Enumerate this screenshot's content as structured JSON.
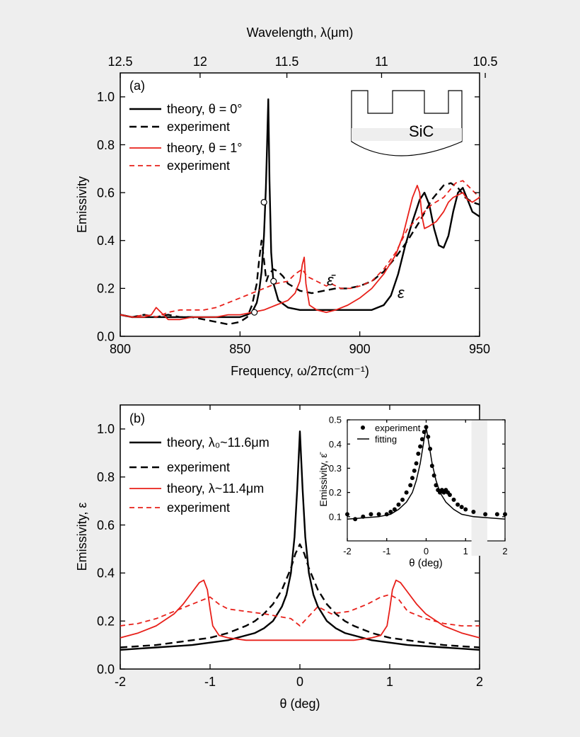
{
  "chart_data": [
    {
      "id": "a",
      "type": "line",
      "panel_label": "(a)",
      "xlabel": "Frequency, ω/2πc(cm⁻¹)",
      "x2label": "Wavelength, λ(μm)",
      "ylabel": "Emissivity",
      "xlim": [
        800,
        950
      ],
      "ylim": [
        0,
        1.1
      ],
      "x_ticks": [
        "800",
        "850",
        "900",
        "950"
      ],
      "x_tick_values": [
        800,
        850,
        900,
        950
      ],
      "y_ticks": [
        "0.0",
        "0.2",
        "0.4",
        "0.6",
        "0.8",
        "1.0"
      ],
      "y_tick_values": [
        0,
        0.2,
        0.4,
        0.6,
        0.8,
        1.0
      ],
      "top_ticks": [
        "12.5",
        "12",
        "11.5",
        "11",
        "10.5"
      ],
      "top_tick_values": [
        12.5,
        12,
        11.5,
        11,
        10.5
      ],
      "grid": false,
      "legend_position": "top-left",
      "legend": [
        {
          "label": "theory, θ = 0°",
          "series": 0
        },
        {
          "label": "experiment",
          "series": 1
        },
        {
          "label": "theory, θ = 1°",
          "series": 2
        },
        {
          "label": "experiment",
          "series": 3
        }
      ],
      "annotations": [
        {
          "text": "ε̄",
          "x": 888,
          "y": 0.24
        },
        {
          "text": "ε",
          "x": 918,
          "y": 0.18
        },
        {
          "text": "SiC",
          "x": 0,
          "y": 0
        }
      ],
      "markers": [
        {
          "x": 860,
          "y": 0.56
        },
        {
          "x": 856,
          "y": 0.1
        },
        {
          "x": 864,
          "y": 0.23
        }
      ],
      "series": [
        {
          "name": "theory, θ = 0°",
          "color": "#000000",
          "dash": "solid",
          "width": 2.4,
          "x": [
            800,
            805,
            810,
            815,
            820,
            825,
            830,
            835,
            840,
            845,
            850,
            853,
            855,
            857,
            858,
            859,
            860,
            860.8,
            861.3,
            861.8,
            862.3,
            863,
            864,
            866,
            870,
            875,
            880,
            890,
            900,
            905,
            910,
            913,
            916,
            919,
            922,
            925,
            927,
            929,
            931,
            933,
            935,
            937,
            939,
            941,
            943,
            945,
            947,
            950
          ],
          "y": [
            0.09,
            0.08,
            0.08,
            0.08,
            0.08,
            0.08,
            0.08,
            0.08,
            0.08,
            0.08,
            0.08,
            0.09,
            0.1,
            0.14,
            0.19,
            0.27,
            0.42,
            0.62,
            0.8,
            0.99,
            0.65,
            0.35,
            0.22,
            0.15,
            0.12,
            0.11,
            0.11,
            0.11,
            0.11,
            0.11,
            0.13,
            0.17,
            0.26,
            0.38,
            0.48,
            0.57,
            0.6,
            0.55,
            0.45,
            0.38,
            0.37,
            0.42,
            0.52,
            0.6,
            0.62,
            0.57,
            0.52,
            0.5
          ]
        },
        {
          "name": "experiment",
          "color": "#000000",
          "dash": "10,6",
          "width": 2.4,
          "x": [
            800,
            805,
            810,
            815,
            820,
            825,
            830,
            835,
            840,
            845,
            850,
            853,
            855,
            857,
            858,
            859,
            860,
            861,
            862,
            864,
            866,
            868,
            870,
            875,
            880,
            885,
            890,
            895,
            900,
            905,
            910,
            915,
            920,
            925,
            930,
            935,
            938,
            941,
            944,
            947,
            950
          ],
          "y": [
            0.09,
            0.08,
            0.09,
            0.08,
            0.09,
            0.08,
            0.08,
            0.07,
            0.06,
            0.05,
            0.06,
            0.08,
            0.13,
            0.22,
            0.32,
            0.4,
            0.32,
            0.23,
            0.26,
            0.28,
            0.27,
            0.25,
            0.22,
            0.19,
            0.18,
            0.19,
            0.2,
            0.2,
            0.21,
            0.23,
            0.27,
            0.33,
            0.4,
            0.48,
            0.57,
            0.63,
            0.64,
            0.62,
            0.58,
            0.56,
            0.55
          ]
        },
        {
          "name": "theory, θ = 1°",
          "color": "#e8201a",
          "dash": "solid",
          "width": 1.8,
          "x": [
            800,
            805,
            810,
            813,
            815,
            818,
            820,
            825,
            830,
            835,
            840,
            845,
            850,
            855,
            860,
            865,
            870,
            873,
            875,
            876,
            876.8,
            877.5,
            879,
            882,
            886,
            890,
            895,
            900,
            905,
            910,
            915,
            918,
            920,
            922,
            924,
            925,
            926,
            927,
            929,
            932,
            935,
            937,
            939,
            941,
            943,
            945,
            947,
            950
          ],
          "y": [
            0.09,
            0.08,
            0.08,
            0.09,
            0.12,
            0.09,
            0.07,
            0.07,
            0.08,
            0.08,
            0.08,
            0.09,
            0.09,
            0.1,
            0.11,
            0.13,
            0.15,
            0.18,
            0.23,
            0.3,
            0.33,
            0.22,
            0.13,
            0.11,
            0.1,
            0.11,
            0.13,
            0.16,
            0.2,
            0.26,
            0.34,
            0.42,
            0.5,
            0.58,
            0.63,
            0.6,
            0.5,
            0.45,
            0.46,
            0.48,
            0.52,
            0.56,
            0.58,
            0.59,
            0.6,
            0.57,
            0.56,
            0.58
          ]
        },
        {
          "name": "experiment",
          "color": "#e8201a",
          "dash": "7,5",
          "width": 1.8,
          "x": [
            800,
            805,
            810,
            815,
            820,
            825,
            830,
            835,
            840,
            845,
            850,
            855,
            860,
            865,
            870,
            873,
            876,
            878,
            880,
            884,
            886,
            888,
            892,
            896,
            900,
            905,
            910,
            915,
            920,
            925,
            930,
            935,
            940,
            943,
            946,
            950
          ],
          "y": [
            0.09,
            0.08,
            0.09,
            0.08,
            0.1,
            0.11,
            0.11,
            0.11,
            0.12,
            0.14,
            0.16,
            0.18,
            0.2,
            0.22,
            0.23,
            0.26,
            0.28,
            0.25,
            0.24,
            0.22,
            0.21,
            0.22,
            0.2,
            0.2,
            0.21,
            0.23,
            0.28,
            0.35,
            0.45,
            0.5,
            0.55,
            0.58,
            0.64,
            0.65,
            0.62,
            0.58
          ]
        }
      ]
    },
    {
      "id": "b",
      "type": "line",
      "panel_label": "(b)",
      "xlabel": "θ (deg)",
      "ylabel": "Emissivity, ε",
      "xlim": [
        -2,
        2
      ],
      "ylim": [
        0,
        1.1
      ],
      "x_ticks": [
        "-2",
        "-1",
        "0",
        "1",
        "2"
      ],
      "x_tick_values": [
        -2,
        -1,
        0,
        1,
        2
      ],
      "y_ticks": [
        "0.0",
        "0.2",
        "0.4",
        "0.6",
        "0.8",
        "1.0"
      ],
      "y_tick_values": [
        0,
        0.2,
        0.4,
        0.6,
        0.8,
        1.0
      ],
      "grid": false,
      "legend_position": "top-left",
      "legend": [
        {
          "label": "theory, λ₀~11.6μm",
          "series": 0
        },
        {
          "label": "experiment",
          "series": 1
        },
        {
          "label": "theory, λ~11.4μm",
          "series": 2
        },
        {
          "label": "experiment",
          "series": 3
        }
      ],
      "series": [
        {
          "name": "theory, λ₀~11.6μm",
          "color": "#000000",
          "dash": "solid",
          "width": 2.4,
          "x": [
            -2,
            -1.8,
            -1.6,
            -1.4,
            -1.2,
            -1,
            -0.8,
            -0.6,
            -0.5,
            -0.4,
            -0.3,
            -0.2,
            -0.15,
            -0.1,
            -0.06,
            -0.03,
            0,
            0.03,
            0.06,
            0.1,
            0.15,
            0.2,
            0.3,
            0.4,
            0.5,
            0.6,
            0.8,
            1,
            1.2,
            1.4,
            1.6,
            1.8,
            2
          ],
          "y": [
            0.08,
            0.085,
            0.09,
            0.095,
            0.1,
            0.11,
            0.12,
            0.14,
            0.15,
            0.17,
            0.2,
            0.26,
            0.31,
            0.4,
            0.55,
            0.75,
            0.99,
            0.75,
            0.55,
            0.4,
            0.31,
            0.26,
            0.2,
            0.17,
            0.15,
            0.14,
            0.12,
            0.11,
            0.1,
            0.095,
            0.09,
            0.085,
            0.08
          ]
        },
        {
          "name": "experiment",
          "color": "#000000",
          "dash": "10,6",
          "width": 2.4,
          "x": [
            -2,
            -1.8,
            -1.6,
            -1.4,
            -1.2,
            -1,
            -0.8,
            -0.6,
            -0.5,
            -0.4,
            -0.3,
            -0.2,
            -0.1,
            -0.05,
            0,
            0.05,
            0.1,
            0.2,
            0.3,
            0.4,
            0.5,
            0.6,
            0.8,
            1,
            1.2,
            1.4,
            1.6,
            1.8,
            2
          ],
          "y": [
            0.09,
            0.095,
            0.1,
            0.11,
            0.12,
            0.13,
            0.15,
            0.18,
            0.2,
            0.23,
            0.27,
            0.33,
            0.42,
            0.48,
            0.52,
            0.48,
            0.42,
            0.33,
            0.27,
            0.23,
            0.2,
            0.18,
            0.15,
            0.13,
            0.12,
            0.11,
            0.1,
            0.095,
            0.09
          ]
        },
        {
          "name": "theory, λ~11.4μm",
          "color": "#e8201a",
          "dash": "solid",
          "width": 1.8,
          "x": [
            -2,
            -1.8,
            -1.6,
            -1.4,
            -1.3,
            -1.2,
            -1.12,
            -1.07,
            -1.03,
            -1.0,
            -0.97,
            -0.9,
            -0.8,
            -0.6,
            -0.3,
            0,
            0.3,
            0.6,
            0.8,
            0.9,
            0.97,
            1.0,
            1.03,
            1.07,
            1.12,
            1.2,
            1.3,
            1.4,
            1.6,
            1.8,
            2
          ],
          "y": [
            0.13,
            0.15,
            0.18,
            0.23,
            0.27,
            0.32,
            0.36,
            0.37,
            0.33,
            0.25,
            0.18,
            0.14,
            0.13,
            0.12,
            0.12,
            0.12,
            0.12,
            0.12,
            0.13,
            0.14,
            0.18,
            0.25,
            0.33,
            0.37,
            0.36,
            0.32,
            0.27,
            0.23,
            0.18,
            0.15,
            0.13
          ]
        },
        {
          "name": "experiment",
          "color": "#e8201a",
          "dash": "7,5",
          "width": 1.8,
          "x": [
            -2,
            -1.8,
            -1.6,
            -1.4,
            -1.2,
            -1.0,
            -0.9,
            -0.8,
            -0.6,
            -0.4,
            -0.25,
            -0.1,
            0,
            0.1,
            0.2,
            0.35,
            0.55,
            0.75,
            0.9,
            1.0,
            1.1,
            1.2,
            1.4,
            1.6,
            1.8,
            2
          ],
          "y": [
            0.18,
            0.19,
            0.21,
            0.24,
            0.27,
            0.3,
            0.27,
            0.25,
            0.24,
            0.23,
            0.22,
            0.21,
            0.18,
            0.22,
            0.26,
            0.23,
            0.24,
            0.27,
            0.3,
            0.31,
            0.29,
            0.24,
            0.21,
            0.19,
            0.18,
            0.18
          ]
        }
      ],
      "inset": {
        "xlabel": "θ (deg)",
        "ylabel": "Emissivity, ε̄",
        "xlim": [
          -2,
          2
        ],
        "ylim": [
          0.0,
          0.5
        ],
        "x_ticks": [
          "-2",
          "-1",
          "0",
          "1",
          "2"
        ],
        "x_tick_values": [
          -2,
          -1,
          0,
          1,
          2
        ],
        "y_ticks": [
          "0.1",
          "0.2",
          "0.3",
          "0.4",
          "0.5"
        ],
        "y_tick_values": [
          0.1,
          0.2,
          0.3,
          0.4,
          0.5
        ],
        "legend": [
          {
            "label": "experiment",
            "kind": "dots"
          },
          {
            "label": "fitting",
            "kind": "line"
          }
        ],
        "experiment_points": {
          "x": [
            -2.0,
            -1.8,
            -1.6,
            -1.4,
            -1.2,
            -1.0,
            -0.9,
            -0.8,
            -0.7,
            -0.6,
            -0.5,
            -0.4,
            -0.35,
            -0.3,
            -0.25,
            -0.2,
            -0.15,
            -0.1,
            -0.05,
            0.0,
            0.05,
            0.1,
            0.15,
            0.2,
            0.25,
            0.3,
            0.35,
            0.4,
            0.45,
            0.5,
            0.55,
            0.6,
            0.7,
            0.8,
            0.9,
            1.0,
            1.2,
            1.5,
            1.8,
            2.0
          ],
          "y": [
            0.11,
            0.09,
            0.1,
            0.11,
            0.11,
            0.11,
            0.12,
            0.13,
            0.15,
            0.17,
            0.2,
            0.23,
            0.26,
            0.29,
            0.32,
            0.36,
            0.39,
            0.42,
            0.45,
            0.47,
            0.43,
            0.38,
            0.31,
            0.27,
            0.23,
            0.21,
            0.2,
            0.21,
            0.2,
            0.21,
            0.2,
            0.19,
            0.17,
            0.15,
            0.14,
            0.13,
            0.12,
            0.11,
            0.11,
            0.11
          ]
        },
        "fit": {
          "x": [
            -2,
            -1.6,
            -1.2,
            -0.9,
            -0.7,
            -0.5,
            -0.35,
            -0.25,
            -0.15,
            -0.08,
            -0.03,
            0,
            0.03,
            0.08,
            0.15,
            0.25,
            0.35,
            0.5,
            0.7,
            0.9,
            1.2,
            1.6,
            2
          ],
          "y": [
            0.09,
            0.095,
            0.1,
            0.11,
            0.13,
            0.16,
            0.2,
            0.25,
            0.32,
            0.39,
            0.44,
            0.47,
            0.44,
            0.39,
            0.32,
            0.25,
            0.2,
            0.16,
            0.13,
            0.11,
            0.1,
            0.095,
            0.09
          ]
        }
      }
    }
  ]
}
